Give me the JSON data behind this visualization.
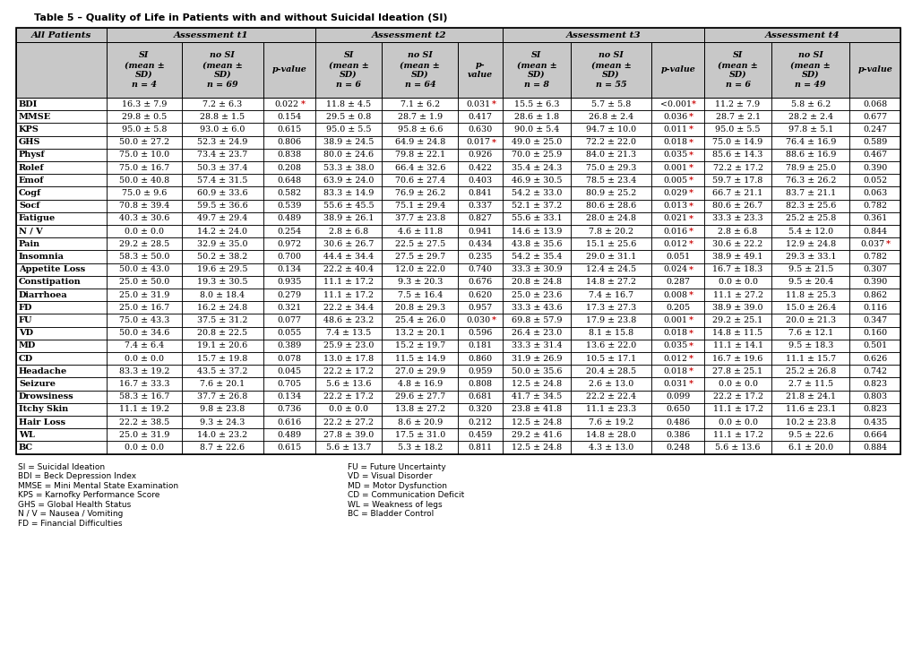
{
  "title": "Table 5 – Quality of Life in Patients with and without Suicidal Ideation (SI)",
  "rows": [
    [
      "BDI",
      "16.3 ± 7.9",
      "7.2 ± 6.3",
      "0.022*",
      "11.8 ± 4.5",
      "7.1 ± 6.2",
      "0.031*",
      "15.5 ± 6.3",
      "5.7 ± 5.8",
      "<0.001*",
      "11.2 ± 7.9",
      "5.8 ± 6.2",
      "0.068"
    ],
    [
      "MMSE",
      "29.8 ± 0.5",
      "28.8 ± 1.5",
      "0.154",
      "29.5 ± 0.8",
      "28.7 ± 1.9",
      "0.417",
      "28.6 ± 1.8",
      "26.8 ± 2.4",
      "0.036*",
      "28.7 ± 2.1",
      "28.2 ± 2.4",
      "0.677"
    ],
    [
      "KPS",
      "95.0 ± 5.8",
      "93.0 ± 6.0",
      "0.615",
      "95.0 ± 5.5",
      "95.8 ± 6.6",
      "0.630",
      "90.0 ± 5.4",
      "94.7 ± 10.0",
      "0.011*",
      "95.0 ± 5.5",
      "97.8 ± 5.1",
      "0.247"
    ],
    [
      "GHS",
      "50.0 ± 27.2",
      "52.3 ± 24.9",
      "0.806",
      "38.9 ± 24.5",
      "64.9 ± 24.8",
      "0.017*",
      "49.0 ± 25.0",
      "72.2 ± 22.0",
      "0.018*",
      "75.0 ± 14.9",
      "76.4 ± 16.9",
      "0.589"
    ],
    [
      "Physf",
      "75.0 ± 10.0",
      "73.4 ± 23.7",
      "0.838",
      "80.0 ± 24.6",
      "79.8 ± 22.1",
      "0.926",
      "70.0 ± 25.9",
      "84.0 ± 21.3",
      "0.035*",
      "85.6 ± 14.3",
      "88.6 ± 16.9",
      "0.467"
    ],
    [
      "Rolef",
      "75.0 ± 16.7",
      "50.3 ± 37.4",
      "0.208",
      "53.3 ± 38.0",
      "66.4 ± 32.6",
      "0.422",
      "35.4 ± 24.3",
      "75.0 ± 29.3",
      "0.001*",
      "72.2 ± 17.2",
      "78.9 ± 25.0",
      "0.390"
    ],
    [
      "Emof",
      "50.0 ± 40.8",
      "57.4 ± 31.5",
      "0.648",
      "63.9 ± 24.0",
      "70.6 ± 27.4",
      "0.403",
      "46.9 ± 30.5",
      "78.5 ± 23.4",
      "0.005*",
      "59.7 ± 17.8",
      "76.3 ± 26.2",
      "0.052"
    ],
    [
      "Cogf",
      "75.0 ± 9.6",
      "60.9 ± 33.6",
      "0.582",
      "83.3 ± 14.9",
      "76.9 ± 26.2",
      "0.841",
      "54.2 ± 33.0",
      "80.9 ± 25.2",
      "0.029*",
      "66.7 ± 21.1",
      "83.7 ± 21.1",
      "0.063"
    ],
    [
      "Socf",
      "70.8 ± 39.4",
      "59.5 ± 36.6",
      "0.539",
      "55.6 ± 45.5",
      "75.1 ± 29.4",
      "0.337",
      "52.1 ± 37.2",
      "80.6 ± 28.6",
      "0.013*",
      "80.6 ± 26.7",
      "82.3 ± 25.6",
      "0.782"
    ],
    [
      "Fatigue",
      "40.3 ± 30.6",
      "49.7 ± 29.4",
      "0.489",
      "38.9 ± 26.1",
      "37.7 ± 23.8",
      "0.827",
      "55.6 ± 33.1",
      "28.0 ± 24.8",
      "0.021*",
      "33.3 ± 23.3",
      "25.2 ± 25.8",
      "0.361"
    ],
    [
      "N / V",
      "0.0 ± 0.0",
      "14.2 ± 24.0",
      "0.254",
      "2.8 ± 6.8",
      "4.6 ± 11.8",
      "0.941",
      "14.6 ± 13.9",
      "7.8 ± 20.2",
      "0.016*",
      "2.8 ± 6.8",
      "5.4 ± 12.0",
      "0.844"
    ],
    [
      "Pain",
      "29.2 ± 28.5",
      "32.9 ± 35.0",
      "0.972",
      "30.6 ± 26.7",
      "22.5 ± 27.5",
      "0.434",
      "43.8 ± 35.6",
      "15.1 ± 25.6",
      "0.012*",
      "30.6 ± 22.2",
      "12.9 ± 24.8",
      "0.037*"
    ],
    [
      "Insomnia",
      "58.3 ± 50.0",
      "50.2 ± 38.2",
      "0.700",
      "44.4 ± 34.4",
      "27.5 ± 29.7",
      "0.235",
      "54.2 ± 35.4",
      "29.0 ± 31.1",
      "0.051",
      "38.9 ± 49.1",
      "29.3 ± 33.1",
      "0.782"
    ],
    [
      "Appetite Loss",
      "50.0 ± 43.0",
      "19.6 ± 29.5",
      "0.134",
      "22.2 ± 40.4",
      "12.0 ± 22.0",
      "0.740",
      "33.3 ± 30.9",
      "12.4 ± 24.5",
      "0.024*",
      "16.7 ± 18.3",
      "9.5 ± 21.5",
      "0.307"
    ],
    [
      "Constipation",
      "25.0 ± 50.0",
      "19.3 ± 30.5",
      "0.935",
      "11.1 ± 17.2",
      "9.3 ± 20.3",
      "0.676",
      "20.8 ± 24.8",
      "14.8 ± 27.2",
      "0.287",
      "0.0 ± 0.0",
      "9.5 ± 20.4",
      "0.390"
    ],
    [
      "Diarrhoea",
      "25.0 ± 31.9",
      "8.0 ± 18.4",
      "0.279",
      "11.1 ± 17.2",
      "7.5 ± 16.4",
      "0.620",
      "25.0 ± 23.6",
      "7.4 ± 16.7",
      "0.008*",
      "11.1 ± 27.2",
      "11.8 ± 25.3",
      "0.862"
    ],
    [
      "FD",
      "25.0 ± 16.7",
      "16.2 ± 24.8",
      "0.321",
      "22.2 ± 34.4",
      "20.8 ± 29.3",
      "0.957",
      "33.3 ± 43.6",
      "17.3 ± 27.3",
      "0.205",
      "38.9 ± 39.0",
      "15.0 ± 26.4",
      "0.116"
    ],
    [
      "FU",
      "75.0 ± 43.3",
      "37.5 ± 31.2",
      "0.077",
      "48.6 ± 23.2",
      "25.4 ± 26.0",
      "0.030*",
      "69.8 ± 57.9",
      "17.9 ± 23.8",
      "0.001*",
      "29.2 ± 25.1",
      "20.0 ± 21.3",
      "0.347"
    ],
    [
      "VD",
      "50.0 ± 34.6",
      "20.8 ± 22.5",
      "0.055",
      "7.4 ± 13.5",
      "13.2 ± 20.1",
      "0.596",
      "26.4 ± 23.0",
      "8.1 ± 15.8",
      "0.018*",
      "14.8 ± 11.5",
      "7.6 ± 12.1",
      "0.160"
    ],
    [
      "MD",
      "7.4 ± 6.4",
      "19.1 ± 20.6",
      "0.389",
      "25.9 ± 23.0",
      "15.2 ± 19.7",
      "0.181",
      "33.3 ± 31.4",
      "13.6 ± 22.0",
      "0.035*",
      "11.1 ± 14.1",
      "9.5 ± 18.3",
      "0.501"
    ],
    [
      "CD",
      "0.0 ± 0.0",
      "15.7 ± 19.8",
      "0.078",
      "13.0 ± 17.8",
      "11.5 ± 14.9",
      "0.860",
      "31.9 ± 26.9",
      "10.5 ± 17.1",
      "0.012*",
      "16.7 ± 19.6",
      "11.1 ± 15.7",
      "0.626"
    ],
    [
      "Headache",
      "83.3 ± 19.2",
      "43.5 ± 37.2",
      "0.045",
      "22.2 ± 17.2",
      "27.0 ± 29.9",
      "0.959",
      "50.0 ± 35.6",
      "20.4 ± 28.5",
      "0.018*",
      "27.8 ± 25.1",
      "25.2 ± 26.8",
      "0.742"
    ],
    [
      "Seizure",
      "16.7 ± 33.3",
      "7.6 ± 20.1",
      "0.705",
      "5.6 ± 13.6",
      "4.8 ± 16.9",
      "0.808",
      "12.5 ± 24.8",
      "2.6 ± 13.0",
      "0.031*",
      "0.0 ± 0.0",
      "2.7 ± 11.5",
      "0.823"
    ],
    [
      "Drowsiness",
      "58.3 ± 16.7",
      "37.7 ± 26.8",
      "0.134",
      "22.2 ± 17.2",
      "29.6 ± 27.7",
      "0.681",
      "41.7 ± 34.5",
      "22.2 ± 22.4",
      "0.099",
      "22.2 ± 17.2",
      "21.8 ± 24.1",
      "0.803"
    ],
    [
      "Itchy Skin",
      "11.1 ± 19.2",
      "9.8 ± 23.8",
      "0.736",
      "0.0 ± 0.0",
      "13.8 ± 27.2",
      "0.320",
      "23.8 ± 41.8",
      "11.1 ± 23.3",
      "0.650",
      "11.1 ± 17.2",
      "11.6 ± 23.1",
      "0.823"
    ],
    [
      "Hair Loss",
      "22.2 ± 38.5",
      "9.3 ± 24.3",
      "0.616",
      "22.2 ± 27.2",
      "8.6 ± 20.9",
      "0.212",
      "12.5 ± 24.8",
      "7.6 ± 19.2",
      "0.486",
      "0.0 ± 0.0",
      "10.2 ± 23.8",
      "0.435"
    ],
    [
      "WL",
      "25.0 ± 31.9",
      "14.0 ± 23.2",
      "0.489",
      "27.8 ± 39.0",
      "17.5 ± 31.0",
      "0.459",
      "29.2 ± 41.6",
      "14.8 ± 28.0",
      "0.386",
      "11.1 ± 17.2",
      "9.5 ± 22.6",
      "0.664"
    ],
    [
      "BC",
      "0.0 ± 0.0",
      "8.7 ± 22.6",
      "0.615",
      "5.6 ± 13.7",
      "5.3 ± 18.2",
      "0.811",
      "12.5 ± 24.8",
      "4.3 ± 13.0",
      "0.248",
      "5.6 ± 13.6",
      "6.1 ± 20.0",
      "0.884"
    ]
  ],
  "sig_color": "#cc0000",
  "header_bg": "#c8c8c8",
  "border_color": "#000000",
  "footnotes_left": [
    "SI = Suicidal Ideation",
    "BDI = Beck Depression Index",
    "MMSE = Mini Mental State Examination",
    "KPS = Karnofky Performance Score",
    "GHS = Global Health Status",
    "N / V = Nausea / Vomiting",
    "FD = Financial Difficulties"
  ],
  "footnotes_right": [
    "FU = Future Uncertainty",
    "VD = Visual Disorder",
    "MD = Motor Dysfunction",
    "CD = Communication Deficit",
    "WL = Weakness of legs",
    "BC = Bladder Control",
    ""
  ]
}
